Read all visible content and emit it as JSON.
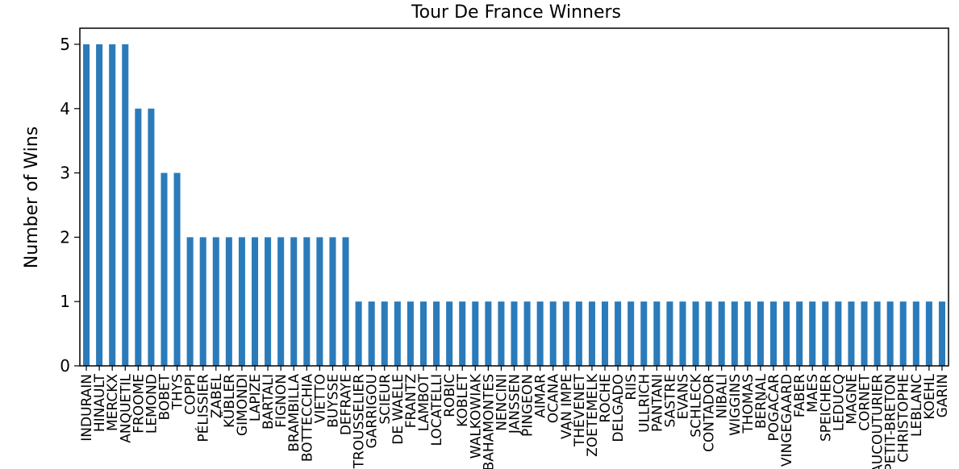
{
  "chart_data": {
    "type": "bar",
    "title": "Tour De France Winners",
    "xlabel": "",
    "ylabel": "Number of Wins",
    "ylim": [
      0,
      5.25
    ],
    "yticks": [
      0,
      1,
      2,
      3,
      4,
      5
    ],
    "grid": false,
    "legend": "none",
    "colors": {
      "bar": "#2b7bba",
      "axis": "#000000"
    },
    "categories": [
      "INDURAIN",
      "HINAULT",
      "MERCKX",
      "ANQUETIL",
      "FROOME",
      "LEMOND",
      "BOBET",
      "THYS",
      "COPPI",
      "PÉLISSIER",
      "ZABEL",
      "KÜBLER",
      "GIMONDI",
      "LAPIZE",
      "BARTALI",
      "FIGNON",
      "BRAMBILLA",
      "BOTTECCHIA",
      "VIETTO",
      "BUYSSE",
      "DEFRAYE",
      "TROUSSELIER",
      "GARRIGOU",
      "SCIEUR",
      "DE WAELE",
      "FRANTZ",
      "LAMBOT",
      "LOCATELLI",
      "ROBIC",
      "KOBLET",
      "WALKOWIAK",
      "BAHAMONTES",
      "NENCINI",
      "JANSSEN",
      "PINGEON",
      "AIMAR",
      "OCANA",
      "VAN IMPE",
      "THÉVENET",
      "ZOETEMELK",
      "ROCHE",
      "DELGADO",
      "RIIS",
      "ULLRICH",
      "PANTANI",
      "SASTRE",
      "EVANS",
      "SCHLECK",
      "CONTADOR",
      "NIBALI",
      "WIGGINS",
      "THOMAS",
      "BERNAL",
      "POGAČAR",
      "VINGEGAARD",
      "FABER",
      "MAES",
      "SPEICHER",
      "LEDUCQ",
      "MAGNE",
      "CORNET",
      "AUCOUTURIER",
      "PETIT-BRETON",
      "CHRISTOPHE",
      "LEBLANC",
      "KOEHL",
      "GARIN"
    ],
    "values": [
      5,
      5,
      5,
      5,
      4,
      4,
      3,
      3,
      2,
      2,
      2,
      2,
      2,
      2,
      2,
      2,
      2,
      2,
      2,
      2,
      2,
      1,
      1,
      1,
      1,
      1,
      1,
      1,
      1,
      1,
      1,
      1,
      1,
      1,
      1,
      1,
      1,
      1,
      1,
      1,
      1,
      1,
      1,
      1,
      1,
      1,
      1,
      1,
      1,
      1,
      1,
      1,
      1,
      1,
      1,
      1,
      1,
      1,
      1,
      1,
      1,
      1,
      1,
      1,
      1,
      1,
      1
    ]
  }
}
